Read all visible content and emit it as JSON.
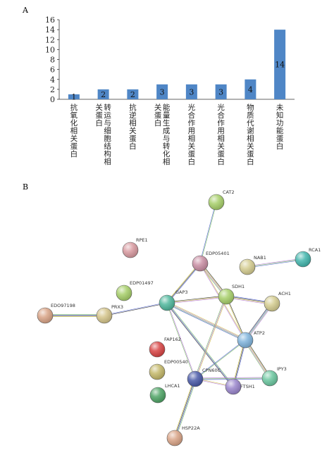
{
  "panels": {
    "a_label": "A",
    "b_label": "B"
  },
  "chart_data": {
    "type": "bar",
    "categories": [
      "抗氧化相关蛋白",
      "转运与细胞结构相关蛋白",
      "抗逆相关蛋白",
      "能量生成与转化相关蛋白",
      "光合作用相关蛋白",
      "光合作用相关蛋白",
      "物质代谢相关蛋白",
      "未知功能蛋白"
    ],
    "category_lines": [
      [
        "抗氧化相关蛋白"
      ],
      [
        "转运与细胞结构相",
        "关蛋白"
      ],
      [
        "抗逆相关蛋白"
      ],
      [
        "能量生成与转化相",
        "关蛋白"
      ],
      [
        "光合作用相关蛋白"
      ],
      [
        "光合作用相关蛋白"
      ],
      [
        "物质代谢相关蛋白"
      ],
      [
        "未知功能蛋白"
      ]
    ],
    "values": [
      1,
      2,
      2,
      3,
      3,
      3,
      4,
      14
    ],
    "data_labels": [
      "1",
      "2",
      "2",
      "3",
      "3",
      "3",
      "4",
      "14"
    ],
    "yticks": [
      "0",
      "2",
      "4",
      "6",
      "8",
      "10",
      "12",
      "14",
      "16"
    ],
    "ylim": [
      0,
      16
    ],
    "bar_color": "#4f86c6"
  },
  "network": {
    "nodes": [
      {
        "id": "CAT2",
        "color": "#a7cf6a"
      },
      {
        "id": "RPE1",
        "color": "#d89aa0"
      },
      {
        "id": "EDP05401",
        "color": "#c98fa4"
      },
      {
        "id": "NAB1",
        "color": "#d4cc90"
      },
      {
        "id": "RCA1",
        "color": "#43b6ad"
      },
      {
        "id": "EDP01497",
        "color": "#a7cf6a"
      },
      {
        "id": "GAP3",
        "color": "#4fb79c"
      },
      {
        "id": "SDH1",
        "color": "#a7cf6a"
      },
      {
        "id": "ACH1",
        "color": "#d4cc90"
      },
      {
        "id": "EDO97198",
        "color": "#d9a487"
      },
      {
        "id": "PRX3",
        "color": "#d4c48a"
      },
      {
        "id": "ATP2",
        "color": "#80b4dc"
      },
      {
        "id": "FAP162",
        "color": "#d84545"
      },
      {
        "id": "EDP00540",
        "color": "#c4b86a"
      },
      {
        "id": "CPN60C",
        "color": "#4a5aa8"
      },
      {
        "id": "FTSH1",
        "color": "#9a86cc"
      },
      {
        "id": "IPY3",
        "color": "#6cc7a0"
      },
      {
        "id": "LHCA1",
        "color": "#4fa466"
      },
      {
        "id": "HSP22A",
        "color": "#d9a487"
      }
    ],
    "edges": [
      [
        "CAT2",
        "EDP05401"
      ],
      [
        "EDP05401",
        "GAP3"
      ],
      [
        "EDP05401",
        "SDH1"
      ],
      [
        "EDP05401",
        "ATP2"
      ],
      [
        "NAB1",
        "RCA1"
      ],
      [
        "EDO97198",
        "PRX3"
      ],
      [
        "PRX3",
        "GAP3"
      ],
      [
        "GAP3",
        "SDH1"
      ],
      [
        "GAP3",
        "ATP2"
      ],
      [
        "GAP3",
        "CPN60C"
      ],
      [
        "GAP3",
        "FTSH1"
      ],
      [
        "SDH1",
        "ACH1"
      ],
      [
        "SDH1",
        "ATP2"
      ],
      [
        "SDH1",
        "CPN60C"
      ],
      [
        "ACH1",
        "ATP2"
      ],
      [
        "ATP2",
        "CPN60C"
      ],
      [
        "ATP2",
        "FTSH1"
      ],
      [
        "ATP2",
        "IPY3"
      ],
      [
        "CPN60C",
        "FTSH1"
      ],
      [
        "CPN60C",
        "IPY3"
      ],
      [
        "CPN60C",
        "HSP22A"
      ]
    ]
  }
}
